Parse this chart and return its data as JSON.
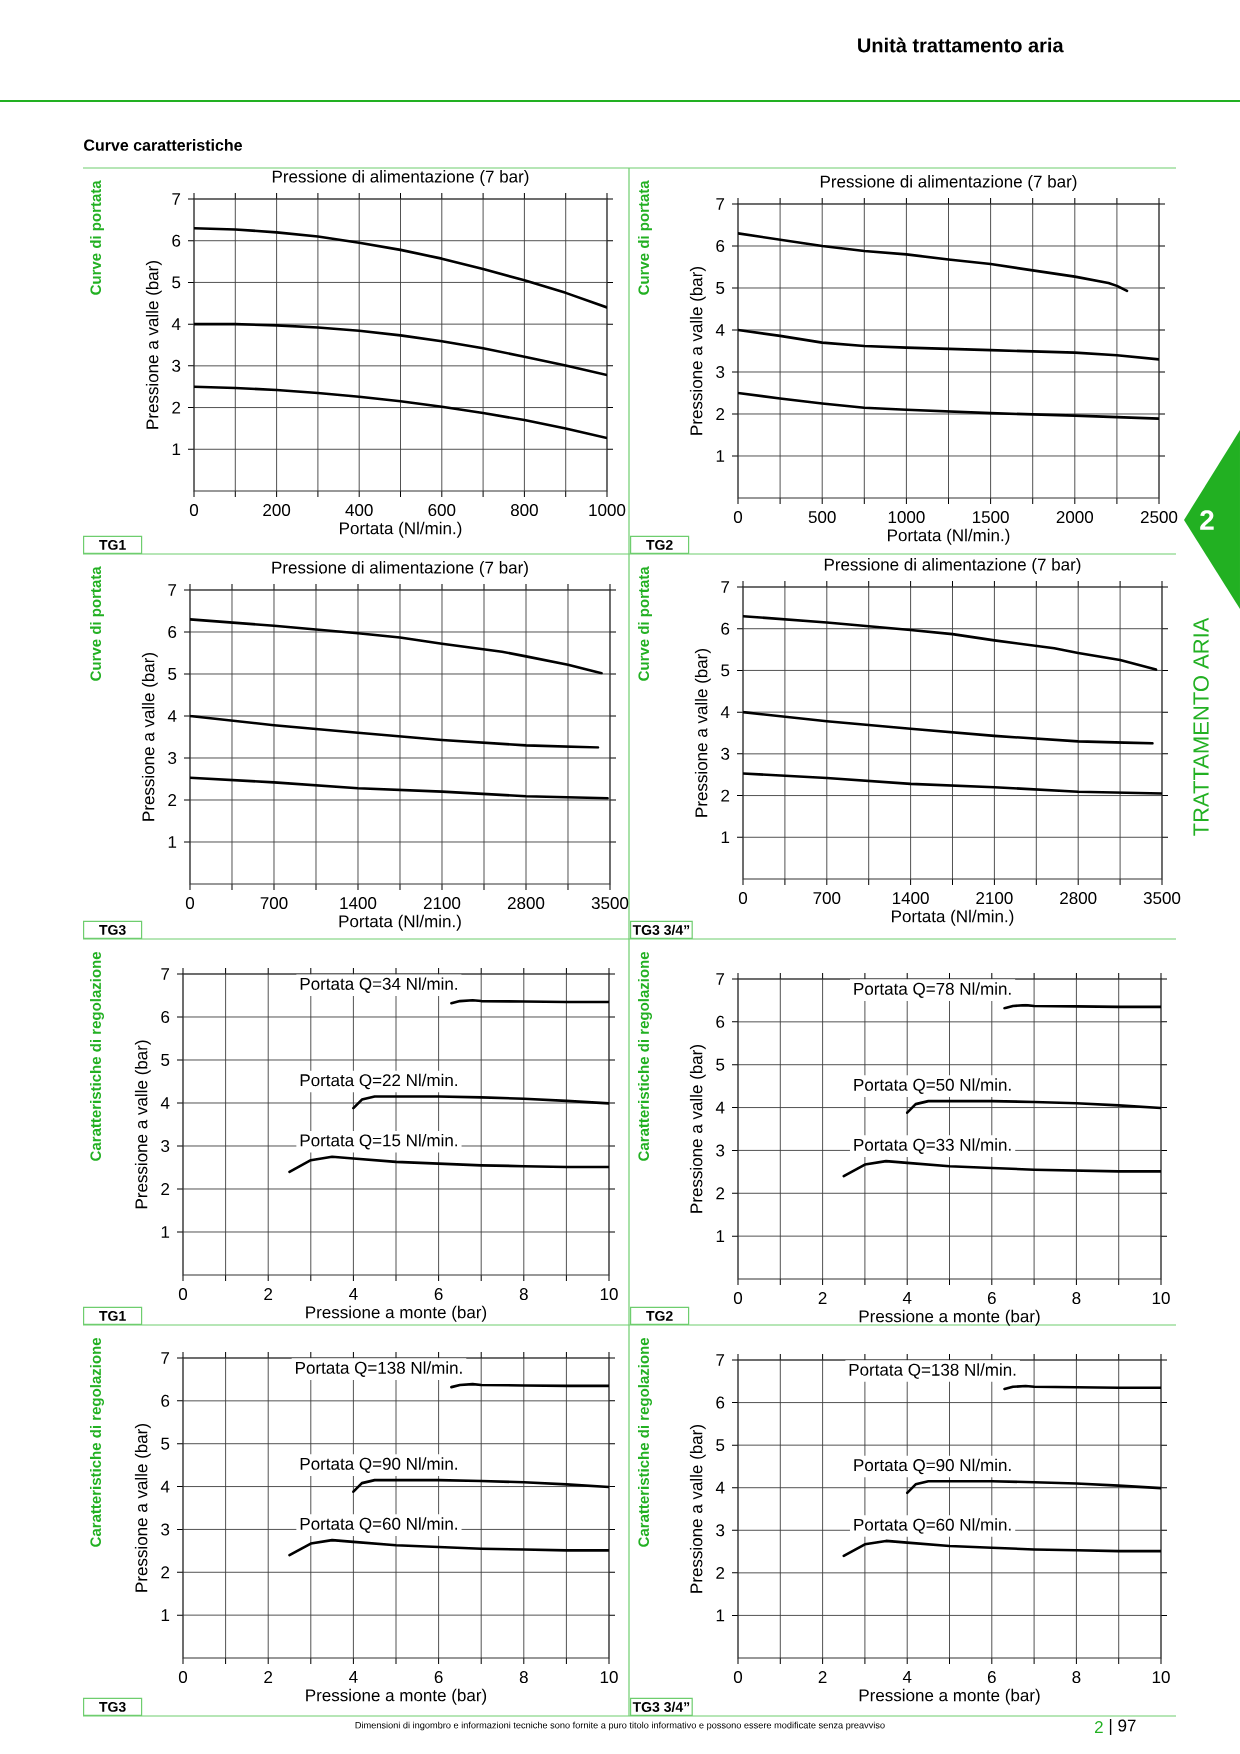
{
  "chart_data": [
    {
      "type": "line",
      "title": "Pressione di alimentazione (7 bar)",
      "xlabel": "Portata (Nl/min.)",
      "ylabel": "Pressione a valle (bar)",
      "xlim": [
        0,
        1000
      ],
      "ylim": [
        0,
        7
      ],
      "grid": true,
      "xticks": [
        0,
        {
          "value": 100,
          "label": null
        },
        200,
        {
          "value": 300,
          "label": null
        },
        400,
        {
          "value": 500,
          "label": null
        },
        600,
        {
          "value": 700,
          "label": null
        },
        800,
        {
          "value": 900,
          "label": null
        },
        1000
      ],
      "yticks": [
        1,
        2,
        3,
        4,
        5,
        6,
        7
      ],
      "series": [
        {
          "color": "#000000",
          "x": [
            0,
            100,
            200,
            300,
            400,
            500,
            600,
            700,
            800,
            900,
            1000
          ],
          "values": [
            6.3,
            6.27,
            6.2,
            6.1,
            5.95,
            5.78,
            5.57,
            5.32,
            5.05,
            4.75,
            4.4
          ]
        },
        {
          "color": "#000000",
          "x": [
            0,
            100,
            200,
            300,
            400,
            500,
            600,
            700,
            800,
            900,
            1000
          ],
          "values": [
            4.0,
            4.0,
            3.97,
            3.92,
            3.84,
            3.73,
            3.59,
            3.42,
            3.22,
            3.01,
            2.78
          ]
        },
        {
          "color": "#000000",
          "x": [
            0,
            100,
            200,
            300,
            400,
            500,
            600,
            700,
            800,
            900,
            1000
          ],
          "values": [
            2.5,
            2.47,
            2.42,
            2.35,
            2.26,
            2.15,
            2.02,
            1.87,
            1.7,
            1.5,
            1.27
          ]
        }
      ],
      "annotations": [
        "Curve di portata",
        "TG1",
        "Unità trattamento aria",
        "Curve caratteristiche",
        "2",
        "TRATTAMENTO ARIA",
        "Dimensioni di ingombro e informazioni tecniche sono fornite a puro titolo informativo e possono essere modificate senza preavviso",
        "2",
        "| 97"
      ]
    },
    {
      "type": "line",
      "title": "Pressione di alimentazione (7 bar)",
      "xlabel": "Portata (Nl/min.)",
      "ylabel": "Pressione a valle (bar)",
      "xlim": [
        0,
        2500
      ],
      "ylim": [
        0,
        7
      ],
      "grid": true,
      "xticks": [
        0,
        {
          "value": 250,
          "label": null
        },
        500,
        {
          "value": 750,
          "label": null
        },
        1000,
        {
          "value": 1250,
          "label": null
        },
        1500,
        {
          "value": 1750,
          "label": null
        },
        2000,
        {
          "value": 2250,
          "label": null
        },
        2500
      ],
      "yticks": [
        1,
        2,
        3,
        4,
        5,
        6,
        7
      ],
      "series": [
        {
          "color": "#000000",
          "x": [
            0,
            250,
            500,
            750,
            1000,
            1250,
            1500,
            1750,
            2000,
            2200,
            2250,
            2310
          ],
          "values": [
            6.3,
            6.15,
            6.0,
            5.88,
            5.8,
            5.68,
            5.57,
            5.42,
            5.27,
            5.12,
            5.05,
            4.93
          ]
        },
        {
          "color": "#000000",
          "x": [
            0,
            250,
            500,
            750,
            1000,
            1500,
            2000,
            2250,
            2500
          ],
          "values": [
            4.0,
            3.86,
            3.7,
            3.62,
            3.58,
            3.52,
            3.46,
            3.4,
            3.3
          ]
        },
        {
          "color": "#000000",
          "x": [
            0,
            250,
            500,
            750,
            1000,
            1500,
            2000,
            2500
          ],
          "values": [
            2.5,
            2.37,
            2.25,
            2.15,
            2.1,
            2.02,
            1.96,
            1.89
          ]
        }
      ],
      "annotations": [
        "Curve di portata",
        "TG2"
      ]
    },
    {
      "type": "line",
      "title": "Pressione di alimentazione (7 bar)",
      "xlabel": "Portata (Nl/min.)",
      "ylabel": "Pressione a valle (bar)",
      "xlim": [
        0,
        3500
      ],
      "ylim": [
        0,
        7
      ],
      "grid": true,
      "xticks": [
        0,
        {
          "value": 350,
          "label": null
        },
        700,
        {
          "value": 1050,
          "label": null
        },
        1400,
        {
          "value": 1750,
          "label": null
        },
        2100,
        {
          "value": 2450,
          "label": null
        },
        2800,
        {
          "value": 3150,
          "label": null
        },
        3500
      ],
      "yticks": [
        1,
        2,
        3,
        4,
        5,
        6,
        7
      ],
      "series": [
        {
          "color": "#000000",
          "x": [
            0,
            700,
            1400,
            1750,
            2100,
            2600,
            2800,
            3150,
            3430
          ],
          "values": [
            6.3,
            6.15,
            5.97,
            5.87,
            5.72,
            5.53,
            5.42,
            5.22,
            5.02
          ]
        },
        {
          "color": "#000000",
          "x": [
            0,
            700,
            1400,
            2100,
            2800,
            3400
          ],
          "values": [
            4.0,
            3.78,
            3.6,
            3.43,
            3.3,
            3.25
          ]
        },
        {
          "color": "#000000",
          "x": [
            0,
            700,
            1400,
            2100,
            2800,
            3480
          ],
          "values": [
            2.53,
            2.42,
            2.28,
            2.2,
            2.09,
            2.04
          ]
        }
      ],
      "annotations": [
        "Curve di portata",
        "TG3"
      ]
    },
    {
      "type": "line",
      "title": "Pressione di alimentazione (7 bar)",
      "xlabel": "Portata (Nl/min.)",
      "ylabel": "Pressione a valle (bar)",
      "xlim": [
        0,
        3500
      ],
      "ylim": [
        0,
        7
      ],
      "grid": true,
      "xticks": [
        0,
        {
          "value": 350,
          "label": null
        },
        700,
        {
          "value": 1050,
          "label": null
        },
        1400,
        {
          "value": 1750,
          "label": null
        },
        2100,
        {
          "value": 2450,
          "label": null
        },
        2800,
        {
          "value": 3150,
          "label": null
        },
        3500
      ],
      "yticks": [
        1,
        2,
        3,
        4,
        5,
        6,
        7
      ],
      "series": [
        {
          "color": "#000000",
          "x": [
            0,
            700,
            1400,
            1750,
            2100,
            2600,
            2800,
            3150,
            3450
          ],
          "values": [
            6.3,
            6.15,
            5.97,
            5.87,
            5.72,
            5.53,
            5.42,
            5.25,
            5.02
          ]
        },
        {
          "color": "#000000",
          "x": [
            0,
            700,
            1400,
            2100,
            2800,
            3420
          ],
          "values": [
            4.0,
            3.78,
            3.6,
            3.43,
            3.3,
            3.25
          ]
        },
        {
          "color": "#000000",
          "x": [
            0,
            700,
            1400,
            2100,
            2800,
            3500
          ],
          "values": [
            2.53,
            2.42,
            2.28,
            2.2,
            2.09,
            2.05
          ]
        }
      ],
      "annotations": [
        "Curve di portata",
        "TG3 3/4”"
      ]
    },
    {
      "type": "line",
      "xlabel": "Pressione a monte (bar)",
      "ylabel": "Pressione a valle (bar)",
      "xlim": [
        0,
        10
      ],
      "ylim": [
        0,
        7
      ],
      "grid": true,
      "xticks": [
        0,
        {
          "value": 1,
          "label": null
        },
        2,
        {
          "value": 3,
          "label": null
        },
        4,
        {
          "value": 5,
          "label": null
        },
        6,
        {
          "value": 7,
          "label": null
        },
        8,
        {
          "value": 9,
          "label": null
        },
        10
      ],
      "yticks": [
        1,
        2,
        3,
        4,
        5,
        6,
        7
      ],
      "series": [
        {
          "name": "Portata Q=34 Nl/min.",
          "color": "#000000",
          "x": [
            6.3,
            6.5,
            6.8,
            7,
            8,
            9,
            10
          ],
          "values": [
            6.32,
            6.37,
            6.39,
            6.37,
            6.36,
            6.35,
            6.35
          ]
        },
        {
          "name": "Portata Q=22 Nl/min.",
          "color": "#000000",
          "x": [
            4.0,
            4.2,
            4.5,
            5,
            6,
            7,
            8,
            9,
            10
          ],
          "values": [
            3.88,
            4.08,
            4.15,
            4.15,
            4.15,
            4.13,
            4.1,
            4.05,
            3.99
          ]
        },
        {
          "name": "Portata Q=15 Nl/min.",
          "color": "#000000",
          "x": [
            2.5,
            3,
            3.5,
            4,
            5,
            6,
            7,
            8,
            9,
            10
          ],
          "values": [
            2.4,
            2.67,
            2.75,
            2.71,
            2.63,
            2.59,
            2.55,
            2.53,
            2.51,
            2.51
          ]
        }
      ],
      "annotations": [
        "Caratteristiche di regolazione",
        "TG1"
      ]
    },
    {
      "type": "line",
      "xlabel": "Pressione a monte (bar)",
      "ylabel": "Pressione a valle (bar)",
      "xlim": [
        0,
        10
      ],
      "ylim": [
        0,
        7
      ],
      "grid": true,
      "xticks": [
        0,
        {
          "value": 1,
          "label": null
        },
        2,
        {
          "value": 3,
          "label": null
        },
        4,
        {
          "value": 5,
          "label": null
        },
        6,
        {
          "value": 7,
          "label": null
        },
        8,
        {
          "value": 9,
          "label": null
        },
        10
      ],
      "yticks": [
        1,
        2,
        3,
        4,
        5,
        6,
        7
      ],
      "series": [
        {
          "name": "Portata Q=78 Nl/min.",
          "color": "#000000",
          "x": [
            6.3,
            6.5,
            6.8,
            7,
            8,
            9,
            10
          ],
          "values": [
            6.32,
            6.37,
            6.39,
            6.37,
            6.36,
            6.35,
            6.35
          ]
        },
        {
          "name": "Portata Q=50 Nl/min.",
          "color": "#000000",
          "x": [
            4.0,
            4.2,
            4.5,
            5,
            6,
            7,
            8,
            9,
            10
          ],
          "values": [
            3.88,
            4.08,
            4.15,
            4.15,
            4.15,
            4.13,
            4.1,
            4.05,
            3.99
          ]
        },
        {
          "name": "Portata Q=33 Nl/min.",
          "color": "#000000",
          "x": [
            2.5,
            3,
            3.5,
            4,
            5,
            6,
            7,
            8,
            9,
            10
          ],
          "values": [
            2.4,
            2.67,
            2.75,
            2.71,
            2.63,
            2.59,
            2.55,
            2.53,
            2.51,
            2.51
          ]
        }
      ],
      "annotations": [
        "Caratteristiche di regolazione",
        "TG2"
      ]
    },
    {
      "type": "line",
      "xlabel": "Pressione a monte (bar)",
      "ylabel": "Pressione a valle (bar)",
      "xlim": [
        0,
        10
      ],
      "ylim": [
        0,
        7
      ],
      "grid": true,
      "xticks": [
        0,
        {
          "value": 1,
          "label": null
        },
        2,
        {
          "value": 3,
          "label": null
        },
        4,
        {
          "value": 5,
          "label": null
        },
        6,
        {
          "value": 7,
          "label": null
        },
        8,
        {
          "value": 9,
          "label": null
        },
        10
      ],
      "yticks": [
        1,
        2,
        3,
        4,
        5,
        6,
        7
      ],
      "series": [
        {
          "name": "Portata Q=138 Nl/min.",
          "color": "#000000",
          "x": [
            6.3,
            6.5,
            6.8,
            7,
            8,
            9,
            10
          ],
          "values": [
            6.32,
            6.37,
            6.39,
            6.37,
            6.36,
            6.35,
            6.35
          ]
        },
        {
          "name": "Portata Q=90 Nl/min.",
          "color": "#000000",
          "x": [
            4.0,
            4.2,
            4.5,
            5,
            6,
            7,
            8,
            9,
            10
          ],
          "values": [
            3.88,
            4.08,
            4.15,
            4.15,
            4.15,
            4.13,
            4.1,
            4.05,
            3.99
          ]
        },
        {
          "name": "Portata Q=60 Nl/min.",
          "color": "#000000",
          "x": [
            2.5,
            3,
            3.5,
            4,
            5,
            6,
            7,
            8,
            9,
            10
          ],
          "values": [
            2.4,
            2.67,
            2.75,
            2.71,
            2.63,
            2.59,
            2.55,
            2.53,
            2.51,
            2.51
          ]
        }
      ],
      "annotations": [
        "Caratteristiche di regolazione",
        "TG3"
      ]
    },
    {
      "type": "line",
      "xlabel": "Pressione a monte (bar)",
      "ylabel": "Pressione a valle (bar)",
      "xlim": [
        0,
        10
      ],
      "ylim": [
        0,
        7
      ],
      "grid": true,
      "xticks": [
        0,
        {
          "value": 1,
          "label": null
        },
        2,
        {
          "value": 3,
          "label": null
        },
        4,
        {
          "value": 5,
          "label": null
        },
        6,
        {
          "value": 7,
          "label": null
        },
        8,
        {
          "value": 9,
          "label": null
        },
        10
      ],
      "yticks": [
        1,
        2,
        3,
        4,
        5,
        6,
        7
      ],
      "series": [
        {
          "name": "Portata Q=138 Nl/min.",
          "color": "#000000",
          "x": [
            6.3,
            6.5,
            6.8,
            7,
            8,
            9,
            10
          ],
          "values": [
            6.32,
            6.37,
            6.39,
            6.37,
            6.36,
            6.35,
            6.35
          ]
        },
        {
          "name": "Portata Q=90 Nl/min.",
          "color": "#000000",
          "x": [
            4.0,
            4.2,
            4.5,
            5,
            6,
            7,
            8,
            9,
            10
          ],
          "values": [
            3.88,
            4.08,
            4.15,
            4.15,
            4.15,
            4.13,
            4.1,
            4.05,
            3.99
          ]
        },
        {
          "name": "Portata Q=60 Nl/min.",
          "color": "#000000",
          "x": [
            2.5,
            3,
            3.5,
            4,
            5,
            6,
            7,
            8,
            9,
            10
          ],
          "values": [
            2.4,
            2.67,
            2.75,
            2.71,
            2.63,
            2.59,
            2.55,
            2.53,
            2.51,
            2.51
          ]
        }
      ],
      "annotations": [
        "Caratteristiche di regolazione",
        "TG3 3/4”"
      ]
    }
  ]
}
